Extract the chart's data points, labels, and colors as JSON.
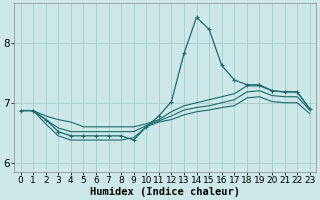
{
  "xlabel": "Humidex (Indice chaleur)",
  "background_color": "#cce8e8",
  "grid_color": "#aacccc",
  "line_color": "#1a6b6b",
  "xlim": [
    -0.5,
    23.5
  ],
  "ylim": [
    5.85,
    8.65
  ],
  "yticks": [
    6,
    7,
    8
  ],
  "xticks": [
    0,
    1,
    2,
    3,
    4,
    5,
    6,
    7,
    8,
    9,
    10,
    11,
    12,
    13,
    14,
    15,
    16,
    17,
    18,
    19,
    20,
    21,
    22,
    23
  ],
  "line_main_x": [
    0,
    1,
    2,
    3,
    4,
    5,
    6,
    7,
    8,
    9,
    10,
    11,
    12,
    13,
    14,
    15,
    16,
    17,
    18,
    19,
    20,
    21,
    22,
    23
  ],
  "line_main_y": [
    6.87,
    6.87,
    6.72,
    6.52,
    6.45,
    6.45,
    6.45,
    6.45,
    6.45,
    6.38,
    6.6,
    6.78,
    7.02,
    7.82,
    8.42,
    8.22,
    7.62,
    7.38,
    7.3,
    7.3,
    7.2,
    7.18,
    7.18,
    6.9
  ],
  "line_top_x": [
    0,
    1,
    2,
    3,
    4,
    5,
    6,
    7,
    8,
    9,
    10,
    11,
    12,
    13,
    14,
    15,
    16,
    17,
    18,
    19,
    20,
    21,
    22,
    23
  ],
  "line_top_y": [
    6.87,
    6.87,
    6.78,
    6.72,
    6.68,
    6.6,
    6.6,
    6.6,
    6.6,
    6.6,
    6.65,
    6.72,
    6.85,
    6.95,
    7.0,
    7.05,
    7.1,
    7.15,
    7.28,
    7.28,
    7.2,
    7.18,
    7.18,
    6.9
  ],
  "line_mid_x": [
    0,
    1,
    2,
    3,
    4,
    5,
    6,
    7,
    8,
    9,
    10,
    11,
    12,
    13,
    14,
    15,
    16,
    17,
    18,
    19,
    20,
    21,
    22,
    23
  ],
  "line_mid_y": [
    6.87,
    6.87,
    6.72,
    6.58,
    6.52,
    6.52,
    6.52,
    6.52,
    6.52,
    6.52,
    6.62,
    6.7,
    6.78,
    6.88,
    6.92,
    6.95,
    7.0,
    7.05,
    7.18,
    7.2,
    7.12,
    7.1,
    7.1,
    6.88
  ],
  "line_bot_x": [
    0,
    1,
    2,
    3,
    4,
    5,
    6,
    7,
    8,
    9,
    10,
    11,
    12,
    13,
    14,
    15,
    16,
    17,
    18,
    19,
    20,
    21,
    22,
    23
  ],
  "line_bot_y": [
    6.87,
    6.87,
    6.65,
    6.45,
    6.38,
    6.38,
    6.38,
    6.38,
    6.38,
    6.42,
    6.6,
    6.68,
    6.72,
    6.8,
    6.85,
    6.88,
    6.92,
    6.95,
    7.08,
    7.1,
    7.02,
    7.0,
    7.0,
    6.82
  ],
  "tick_fontsize": 6.5,
  "xlabel_fontsize": 7.5
}
